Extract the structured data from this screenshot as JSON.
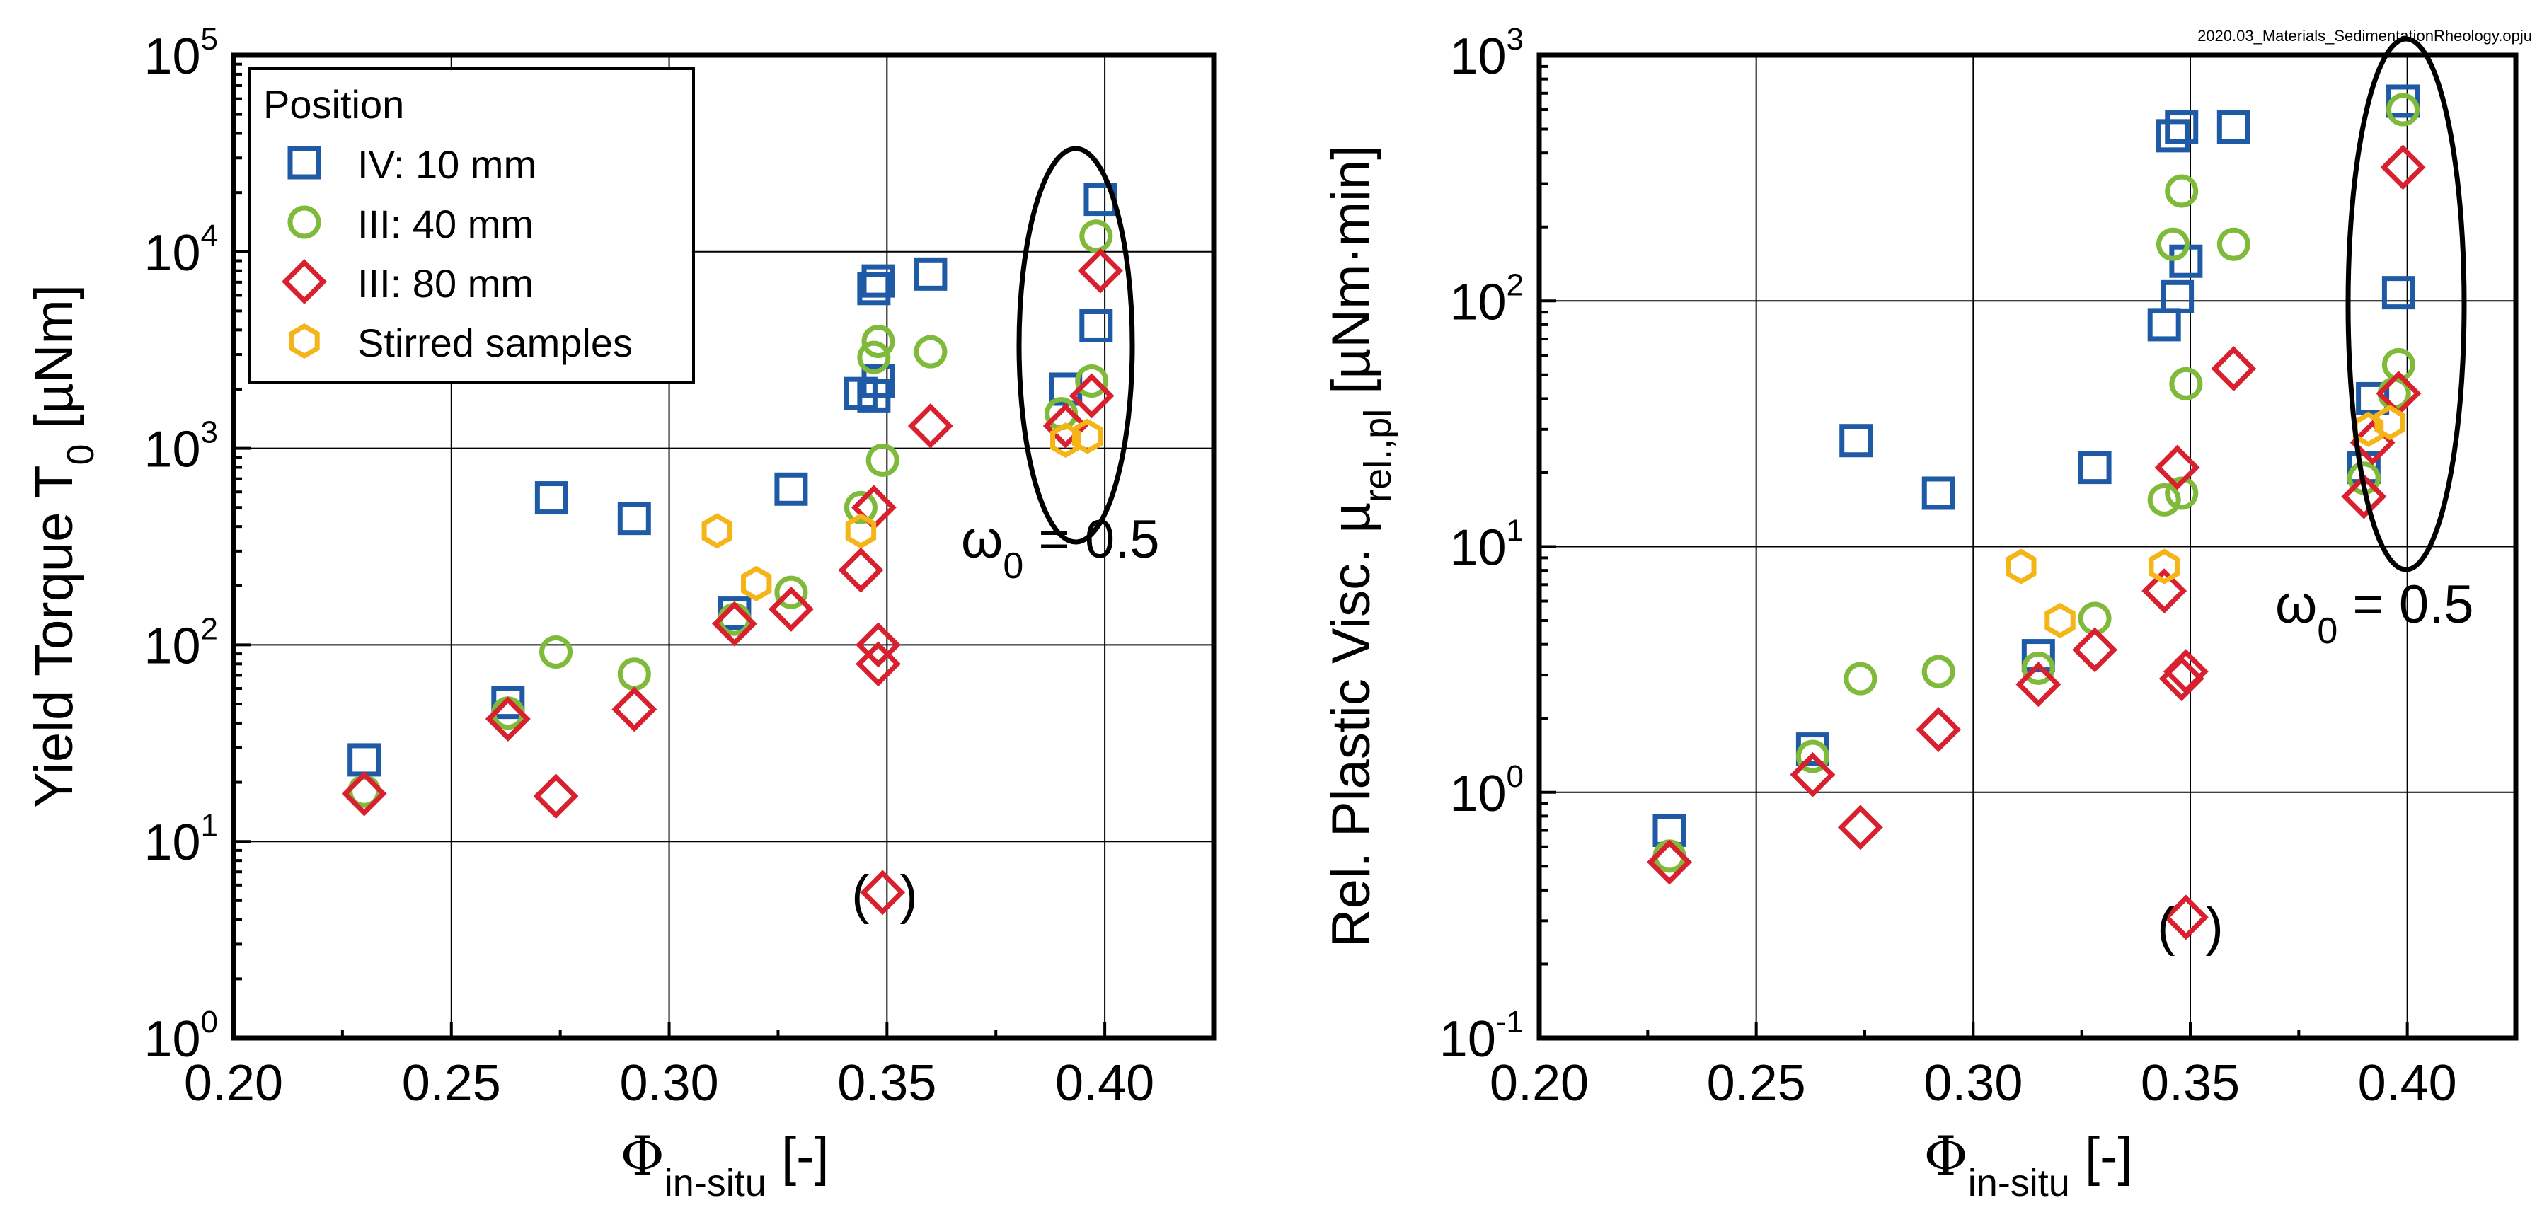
{
  "file_label": "2020.03_Materials_SedimentationRheology.opju",
  "colors": {
    "IV_10mm": "#1f5aa6",
    "III_40mm": "#7fba3a",
    "III_80mm": "#d9202e",
    "stirred": "#f5b418"
  },
  "chart_data": [
    {
      "type": "scatter",
      "xlabel_main": "Φ",
      "xlabel_sub": "in-situ",
      "xlabel_tail": " [-]",
      "ylabel_main": "Yield Torque T",
      "ylabel_sub": "0",
      "ylabel_tail": " [µNm]",
      "xlim": [
        0.2,
        0.425
      ],
      "ylim": [
        1,
        100000
      ],
      "yscale": "log",
      "x_ticks": [
        "0.20",
        "0.25",
        "0.30",
        "0.35",
        "0.40"
      ],
      "y_ticks": [
        {
          "base": "10",
          "exp": "0"
        },
        {
          "base": "10",
          "exp": "1"
        },
        {
          "base": "10",
          "exp": "2"
        },
        {
          "base": "10",
          "exp": "3"
        },
        {
          "base": "10",
          "exp": "4"
        },
        {
          "base": "10",
          "exp": "5"
        }
      ],
      "grid": true,
      "legend": {
        "title": "Position",
        "placement": "top-left",
        "entries": [
          "IV: 10 mm",
          "III: 40 mm",
          "III: 80 mm",
          "Stirred samples"
        ]
      },
      "annotation_omega": {
        "symbol": "ω",
        "sub": "0",
        "rest": " = 0.5"
      },
      "annotation_paren": "( )",
      "series": [
        {
          "name": "IV: 10 mm",
          "marker": "square",
          "color_key": "IV_10mm",
          "x": [
            0.23,
            0.263,
            0.273,
            0.292,
            0.315,
            0.328,
            0.344,
            0.347,
            0.347,
            0.348,
            0.348,
            0.36,
            0.391,
            0.398,
            0.399
          ],
          "y": [
            26,
            51,
            560,
            440,
            145,
            620,
            1900,
            1850,
            6500,
            7100,
            2200,
            7700,
            2000,
            4200,
            18500
          ]
        },
        {
          "name": "III: 40 mm",
          "marker": "circle",
          "color_key": "III_40mm",
          "x": [
            0.23,
            0.263,
            0.274,
            0.292,
            0.315,
            0.328,
            0.344,
            0.347,
            0.348,
            0.349,
            0.36,
            0.39,
            0.397,
            0.398
          ],
          "y": [
            18,
            45,
            92,
            71,
            135,
            185,
            500,
            2900,
            3500,
            870,
            3100,
            1500,
            2200,
            12000
          ]
        },
        {
          "name": "III: 80 mm",
          "marker": "diamond",
          "color_key": "III_80mm",
          "x": [
            0.23,
            0.263,
            0.274,
            0.292,
            0.315,
            0.328,
            0.344,
            0.347,
            0.348,
            0.348,
            0.349,
            0.36,
            0.391,
            0.397,
            0.399
          ],
          "y": [
            17.5,
            42,
            17,
            47,
            128,
            152,
            240,
            500,
            80,
            100,
            5.5,
            1300,
            1300,
            1850,
            8000
          ]
        },
        {
          "name": "Stirred samples",
          "marker": "hexagon",
          "color_key": "stirred",
          "x": [
            0.311,
            0.32,
            0.344,
            0.391,
            0.396
          ],
          "y": [
            380,
            205,
            380,
            1100,
            1150
          ]
        }
      ]
    },
    {
      "type": "scatter",
      "xlabel_main": "Φ",
      "xlabel_sub": "in-situ",
      "xlabel_tail": " [-]",
      "ylabel_main": "Rel. Plastic Visc. µ",
      "ylabel_sub": "rel.,pl",
      "ylabel_tail": " [µNm·min]",
      "xlim": [
        0.2,
        0.425
      ],
      "ylim": [
        0.1,
        1000
      ],
      "yscale": "log",
      "x_ticks": [
        "0.20",
        "0.25",
        "0.30",
        "0.35",
        "0.40"
      ],
      "y_ticks": [
        {
          "base": "10",
          "exp": "-1"
        },
        {
          "base": "10",
          "exp": "0"
        },
        {
          "base": "10",
          "exp": "1"
        },
        {
          "base": "10",
          "exp": "2"
        },
        {
          "base": "10",
          "exp": "3"
        }
      ],
      "grid": true,
      "annotation_omega": {
        "symbol": "ω",
        "sub": "0",
        "rest": " = 0.5"
      },
      "annotation_paren": "( )",
      "series": [
        {
          "name": "IV: 10 mm",
          "marker": "square",
          "color_key": "IV_10mm",
          "x": [
            0.23,
            0.263,
            0.273,
            0.292,
            0.315,
            0.328,
            0.344,
            0.346,
            0.347,
            0.348,
            0.349,
            0.36,
            0.39,
            0.392,
            0.398,
            0.399
          ],
          "y": [
            0.7,
            1.5,
            27,
            16.5,
            3.6,
            21,
            80,
            470,
            104,
            510,
            145,
            510,
            21,
            40,
            108,
            650
          ]
        },
        {
          "name": "III: 40 mm",
          "marker": "circle",
          "color_key": "III_40mm",
          "x": [
            0.23,
            0.263,
            0.274,
            0.292,
            0.315,
            0.328,
            0.344,
            0.346,
            0.348,
            0.348,
            0.349,
            0.36,
            0.39,
            0.397,
            0.398,
            0.399
          ],
          "y": [
            0.55,
            1.4,
            2.9,
            3.1,
            3.2,
            5.1,
            15.5,
            170,
            280,
            16.5,
            46,
            170,
            19,
            42,
            55,
            600
          ]
        },
        {
          "name": "III: 80 mm",
          "marker": "diamond",
          "color_key": "III_80mm",
          "x": [
            0.23,
            0.263,
            0.274,
            0.292,
            0.315,
            0.328,
            0.344,
            0.347,
            0.348,
            0.349,
            0.349,
            0.36,
            0.39,
            0.392,
            0.398,
            0.399
          ],
          "y": [
            0.52,
            1.18,
            0.72,
            1.8,
            2.75,
            3.8,
            6.6,
            21,
            2.9,
            3.1,
            0.31,
            53,
            16,
            26.5,
            42,
            350
          ]
        },
        {
          "name": "Stirred samples",
          "marker": "hexagon",
          "color_key": "stirred",
          "x": [
            0.311,
            0.32,
            0.344,
            0.391,
            0.396
          ],
          "y": [
            8.3,
            5.0,
            8.3,
            30,
            32
          ]
        }
      ]
    }
  ]
}
